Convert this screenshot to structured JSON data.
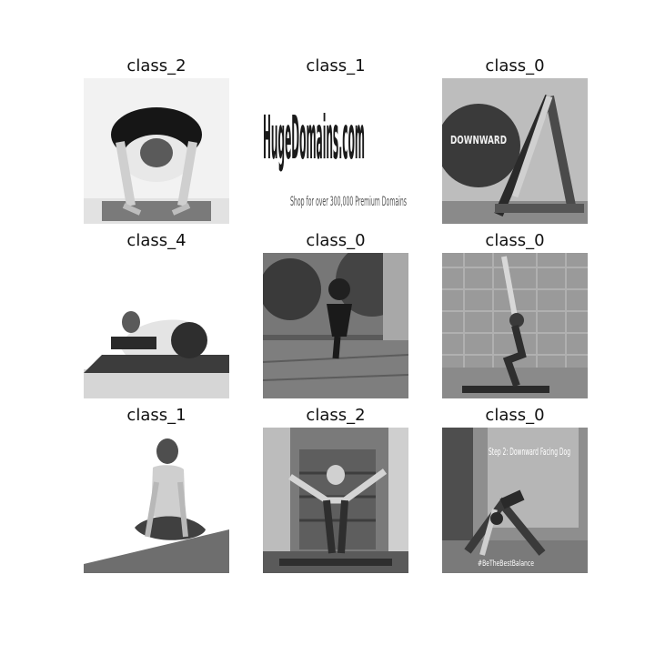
{
  "grid": {
    "tiles": [
      {
        "label": "class_2"
      },
      {
        "label": "class_1",
        "image_text": {
          "brand": "HugeDomains.com",
          "tagline": "Shop for over 300,000 Premium Domains"
        }
      },
      {
        "label": "class_0",
        "image_text": {
          "badge": "DOWNWARD"
        }
      },
      {
        "label": "class_4"
      },
      {
        "label": "class_0"
      },
      {
        "label": "class_0"
      },
      {
        "label": "class_1"
      },
      {
        "label": "class_2"
      },
      {
        "label": "class_0",
        "image_text": {
          "caption": "Step 2: Downward Facing Dog",
          "handle": "#BeTheBestBalance"
        }
      }
    ]
  }
}
